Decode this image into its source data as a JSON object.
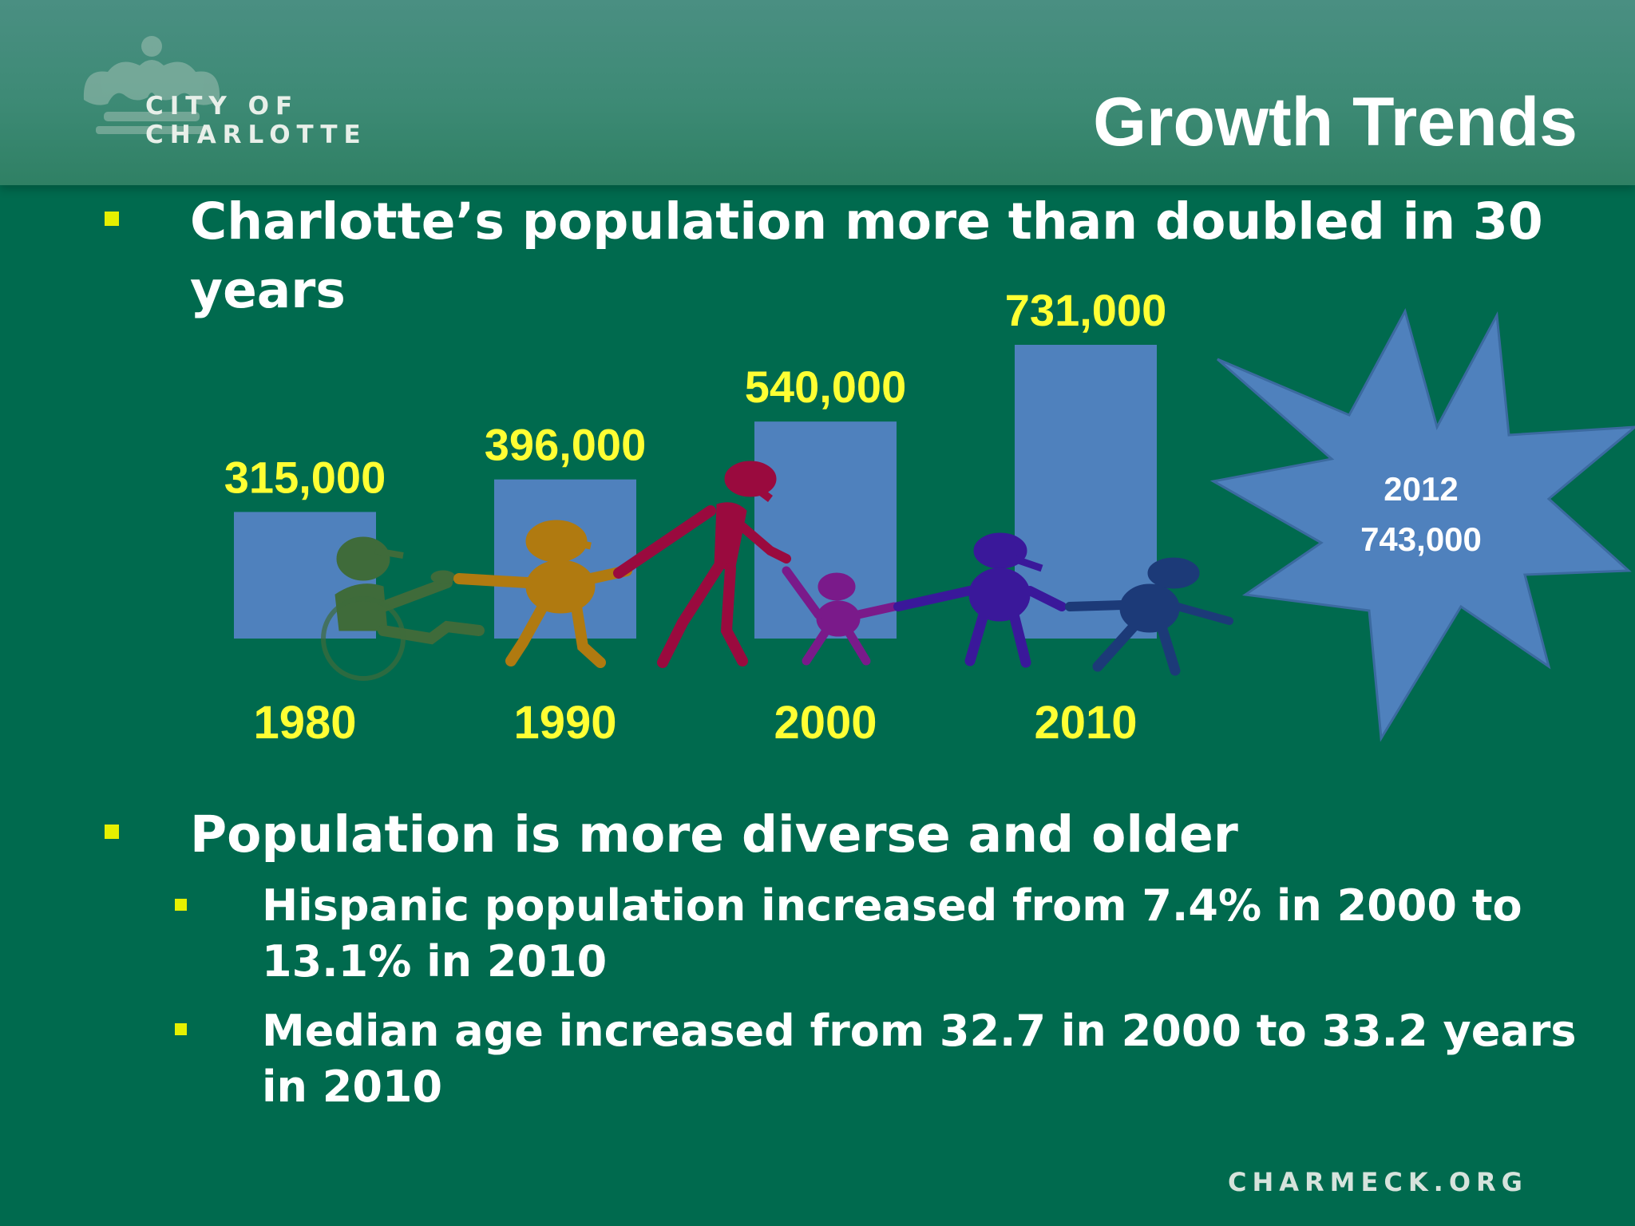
{
  "header": {
    "logo_text": "CITY OF CHARLOTTE",
    "title": "Growth Trends"
  },
  "bullets": {
    "first": "Charlotte’s population more than doubled in 30 years",
    "second": "Population is more diverse and older",
    "sub1": "Hispanic population increased from 7.4% in 2000 to 13.1% in 2010",
    "sub2": "Median age increased from 32.7 in 2000 to 33.2 years in 2010"
  },
  "colors": {
    "background": "#006a4e",
    "bar": "#4f81bd",
    "label": "#ffff33",
    "bullet": "#e6f000",
    "starburst": "#4f81bd"
  },
  "chart_data": {
    "type": "bar",
    "categories": [
      "1980",
      "1990",
      "2000",
      "2010"
    ],
    "values": [
      315000,
      396000,
      540000,
      731000
    ],
    "value_labels": [
      "315,000",
      "396,000",
      "540,000",
      "731,000"
    ],
    "starburst": {
      "year": "2012",
      "value_label": "743,000",
      "value": 743000
    },
    "decoration": "silhouette-people-holding-hands"
  },
  "footer": {
    "site": "CHARMECK.ORG"
  }
}
